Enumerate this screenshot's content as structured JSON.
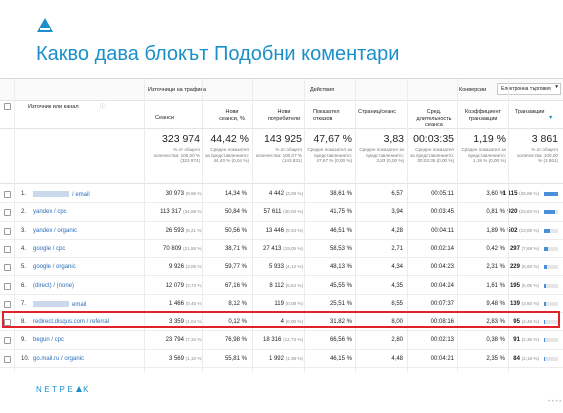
{
  "title": "Какво дава блокът Подобни коментари",
  "brand": {
    "before": "NETPE",
    "after": "K"
  },
  "header": {
    "source_label": "Източник или канал",
    "group_traffic": "Източници на трафика",
    "group_actions": "Действия",
    "group_conversions": "Конверсии",
    "conversion_select": "Електронна търговия",
    "columns": {
      "sessions": "Сеанси",
      "new_sessions_pct": "Нови сеанси, %",
      "new_users": "Нови потребители",
      "bounce_rate": "Показател отказов",
      "pages_per_session": "Страниц/сеанс",
      "avg_duration": "Сред. длительность сеанса",
      "conversion_rate": "Коэффициент транзакции",
      "transactions": "Транзакции"
    }
  },
  "totals": {
    "sessions": "323 974",
    "sessions_sub": "% от общего количества: 100,00 % (323 974)",
    "new_sessions_pct": "44,42 %",
    "new_sessions_sub": "Среден показател за представлението: 44,40 % (0,04 %)",
    "new_users": "143 925",
    "new_users_sub": "% от общего количества: 100,07 % (143 831)",
    "bounce_rate": "47,67 %",
    "bounce_sub": "Среден показател за представлението: 47,67 % (0,00 %)",
    "pages_per_session": "3,83",
    "pages_sub": "Среден показател за представлението: 3,83 (0,00 %)",
    "avg_duration": "00:03:35",
    "duration_sub": "Среден показател за представлението: 00:03:35 (0,00 %)",
    "conversion_rate": "1,19 %",
    "conversion_sub": "Среден показател за представлението: 1,19 % (0,00 %)",
    "transactions": "3 861",
    "transactions_sub": "% от общего количества: 100,00 % (3 861)"
  },
  "rows": [
    {
      "idx": "1.",
      "name": "/ email",
      "blurred": true,
      "sessions": "30 973",
      "sessions_pct": "(9,56 %)",
      "new_pct": "14,34 %",
      "new_users": "4 442",
      "new_users_pct": "(3,09 %)",
      "bounce": "38,61 %",
      "pages": "6,57",
      "duration": "00:05:11",
      "conv": "3,60 %",
      "trans": "1 115",
      "trans_pct": "(28,88 %)",
      "bar": 0.29
    },
    {
      "idx": "2.",
      "name": "yandex / cpc",
      "blurred": false,
      "sessions": "113 317",
      "sessions_pct": "(34,98 %)",
      "new_pct": "50,84 %",
      "new_users": "57 611",
      "new_users_pct": "(40,03 %)",
      "bounce": "41,75 %",
      "pages": "3,94",
      "duration": "00:03:45",
      "conv": "0,81 %",
      "trans": "920",
      "trans_pct": "(23,83 %)",
      "bar": 0.24
    },
    {
      "idx": "3.",
      "name": "yandex / organic",
      "blurred": false,
      "sessions": "26 593",
      "sessions_pct": "(8,21 %)",
      "new_pct": "50,56 %",
      "new_users": "13 446",
      "new_users_pct": "(9,34 %)",
      "bounce": "46,51 %",
      "pages": "4,28",
      "duration": "00:04:11",
      "conv": "1,89 %",
      "trans": "502",
      "trans_pct": "(13,00 %)",
      "bar": 0.13
    },
    {
      "idx": "4.",
      "name": "google / cpc",
      "blurred": false,
      "sessions": "70 809",
      "sessions_pct": "(21,86 %)",
      "new_pct": "38,71 %",
      "new_users": "27 413",
      "new_users_pct": "(19,05 %)",
      "bounce": "58,53 %",
      "pages": "2,71",
      "duration": "00:02:14",
      "conv": "0,42 %",
      "trans": "297",
      "trans_pct": "(7,69 %)",
      "bar": 0.08
    },
    {
      "idx": "5.",
      "name": "google / organic",
      "blurred": false,
      "sessions": "9 926",
      "sessions_pct": "(3,06 %)",
      "new_pct": "59,77 %",
      "new_users": "5 933",
      "new_users_pct": "(4,12 %)",
      "bounce": "48,13 %",
      "pages": "4,34",
      "duration": "00:04:23",
      "conv": "2,31 %",
      "trans": "229",
      "trans_pct": "(5,93 %)",
      "bar": 0.06
    },
    {
      "idx": "6.",
      "name": "(direct) / (none)",
      "blurred": false,
      "sessions": "12 079",
      "sessions_pct": "(3,73 %)",
      "new_pct": "67,16 %",
      "new_users": "8 112",
      "new_users_pct": "(5,64 %)",
      "bounce": "45,55 %",
      "pages": "4,35",
      "duration": "00:04:24",
      "conv": "1,61 %",
      "trans": "195",
      "trans_pct": "(5,05 %)",
      "bar": 0.05
    },
    {
      "idx": "7.",
      "name": "email",
      "blurred": true,
      "sessions": "1 466",
      "sessions_pct": "(0,45 %)",
      "new_pct": "8,12 %",
      "new_users": "119",
      "new_users_pct": "(0,08 %)",
      "bounce": "25,51 %",
      "pages": "8,55",
      "duration": "00:07:37",
      "conv": "9,48 %",
      "trans": "139",
      "trans_pct": "(3,60 %)",
      "bar": 0.036
    },
    {
      "idx": "8.",
      "name": "redirect.disqus.com / referral",
      "blurred": false,
      "sessions": "3 359",
      "sessions_pct": "(1,04 %)",
      "new_pct": "0,12 %",
      "new_users": "4",
      "new_users_pct": "(0,00 %)",
      "bounce": "31,82 %",
      "pages": "8,00",
      "duration": "00:08:16",
      "conv": "2,83 %",
      "trans": "95",
      "trans_pct": "(2,46 %)",
      "bar": 0.025
    },
    {
      "idx": "9.",
      "name": "begun / cpc",
      "blurred": false,
      "sessions": "23 794",
      "sessions_pct": "(7,34 %)",
      "new_pct": "76,98 %",
      "new_users": "18 316",
      "new_users_pct": "(12,73 %)",
      "bounce": "66,56 %",
      "pages": "2,80",
      "duration": "00:02:13",
      "conv": "0,38 %",
      "trans": "91",
      "trans_pct": "(2,36 %)",
      "bar": 0.024
    },
    {
      "idx": "10.",
      "name": "go.mail.ru / organic",
      "blurred": false,
      "sessions": "3 569",
      "sessions_pct": "(1,10 %)",
      "new_pct": "55,81 %",
      "new_users": "1 992",
      "new_users_pct": "(1,38 %)",
      "bounce": "46,15 %",
      "pages": "4,48",
      "duration": "00:04:21",
      "conv": "2,35 %",
      "trans": "84",
      "trans_pct": "(2,18 %)",
      "bar": 0.022
    }
  ]
}
